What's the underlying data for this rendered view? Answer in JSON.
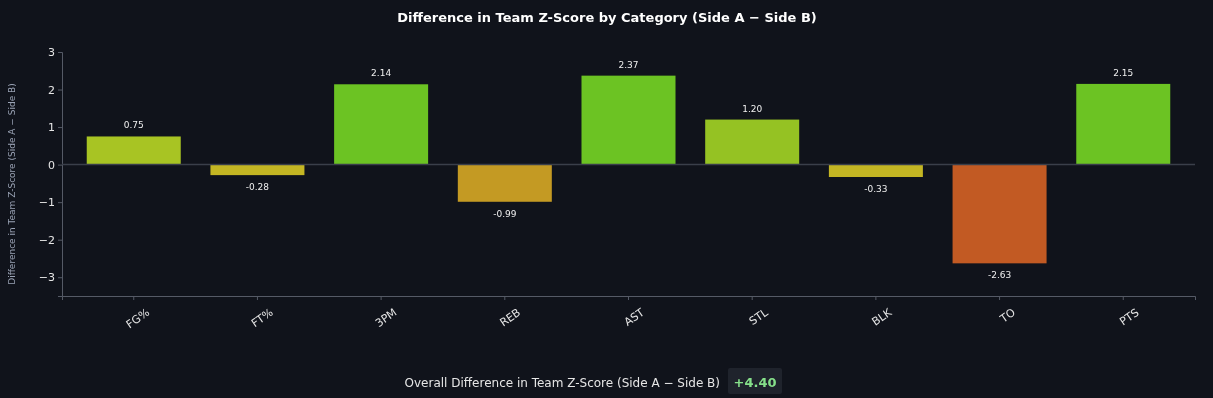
{
  "chart_data": {
    "type": "bar",
    "title": "Difference in Team Z-Score by Category (Side A − Side B)",
    "ylabel": "Difference in Team Z-Score (Side A − Side B)",
    "categories": [
      "FG%",
      "FT%",
      "3PM",
      "REB",
      "AST",
      "STL",
      "BLK",
      "TO",
      "PTS"
    ],
    "values": [
      0.75,
      -0.28,
      2.14,
      -0.99,
      2.37,
      1.2,
      -0.33,
      -2.63,
      2.15
    ],
    "colors": [
      "#a8c423",
      "#c4b623",
      "#6cc323",
      "#c49a23",
      "#6cc323",
      "#95c223",
      "#c4b623",
      "#c25a23",
      "#6cc323"
    ],
    "value_labels": [
      "0.75",
      "-0.28",
      "2.14",
      "-0.99",
      "2.37",
      "1.20",
      "-0.33",
      "-2.63",
      "2.15"
    ],
    "ylim": [
      -3.5,
      3
    ],
    "yticks": [
      {
        "value": -3,
        "label": "−3"
      },
      {
        "value": -2,
        "label": "−2"
      },
      {
        "value": -1,
        "label": "−1"
      },
      0,
      1,
      2,
      3
    ],
    "annotations": [
      "Overall Difference in Team Z-Score (Side A − Side B)",
      "+4.40"
    ]
  }
}
